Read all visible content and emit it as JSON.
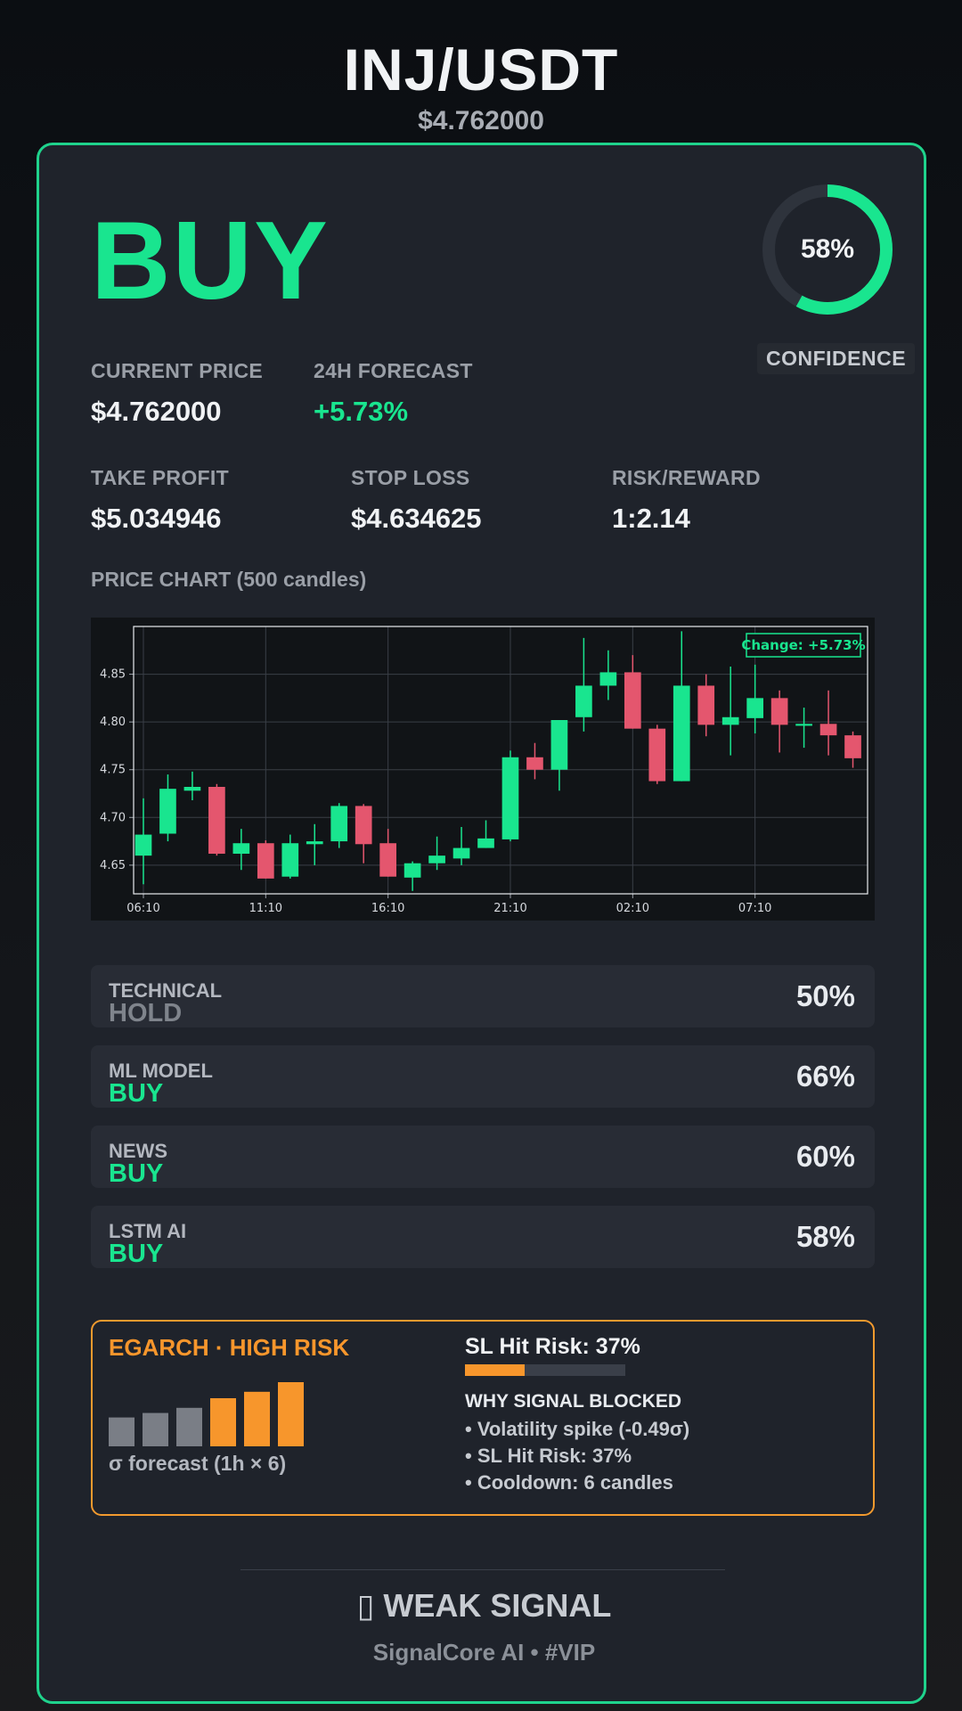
{
  "header": {
    "pair": "INJ/USDT",
    "price": "$4.762000"
  },
  "signal": {
    "action": "BUY",
    "confidence_value": 0.58,
    "confidence_text": "58%",
    "confidence_label": "CONFIDENCE",
    "colors": {
      "buy": "#19e58f",
      "sell": "#e4566e",
      "accent_border": "#1fd38c"
    }
  },
  "stats": {
    "current_price": {
      "label": "CURRENT PRICE",
      "value": "$4.762000"
    },
    "forecast": {
      "label": "24H FORECAST",
      "value": "+5.73%"
    },
    "take_profit": {
      "label": "TAKE PROFIT",
      "value": "$5.034946"
    },
    "stop_loss": {
      "label": "STOP LOSS",
      "value": "$4.634625"
    },
    "risk_reward": {
      "label": "RISK/REWARD",
      "value": "1:2.14"
    }
  },
  "chart_title": "PRICE CHART (500 candles)",
  "chart_data": {
    "type": "candlestick",
    "annotation": "Change: +5.73%",
    "ylim": [
      4.62,
      4.9
    ],
    "yticks": [
      4.65,
      4.7,
      4.75,
      4.8,
      4.85
    ],
    "ytick_labels": [
      "4.65",
      "4.70",
      "4.75",
      "4.80",
      "4.85"
    ],
    "xlim": [
      0,
      30
    ],
    "xticks": [
      0.4,
      5.4,
      10.4,
      15.4,
      20.4,
      25.4
    ],
    "xtick_labels": [
      "06:10",
      "11:10",
      "16:10",
      "21:10",
      "02:10",
      "07:10"
    ],
    "grid": true,
    "candles": [
      {
        "o": 4.66,
        "h": 4.72,
        "l": 4.63,
        "c": 4.682
      },
      {
        "o": 4.683,
        "h": 4.745,
        "l": 4.675,
        "c": 4.73
      },
      {
        "o": 4.728,
        "h": 4.748,
        "l": 4.718,
        "c": 4.732
      },
      {
        "o": 4.732,
        "h": 4.735,
        "l": 4.66,
        "c": 4.662
      },
      {
        "o": 4.662,
        "h": 4.688,
        "l": 4.645,
        "c": 4.673
      },
      {
        "o": 4.673,
        "h": 4.676,
        "l": 4.636,
        "c": 4.636
      },
      {
        "o": 4.638,
        "h": 4.682,
        "l": 4.636,
        "c": 4.673
      },
      {
        "o": 4.672,
        "h": 4.693,
        "l": 4.65,
        "c": 4.675
      },
      {
        "o": 4.675,
        "h": 4.715,
        "l": 4.668,
        "c": 4.712
      },
      {
        "o": 4.712,
        "h": 4.714,
        "l": 4.652,
        "c": 4.672
      },
      {
        "o": 4.673,
        "h": 4.688,
        "l": 4.638,
        "c": 4.638
      },
      {
        "o": 4.637,
        "h": 4.654,
        "l": 4.623,
        "c": 4.652
      },
      {
        "o": 4.652,
        "h": 4.68,
        "l": 4.645,
        "c": 4.66
      },
      {
        "o": 4.657,
        "h": 4.69,
        "l": 4.65,
        "c": 4.668
      },
      {
        "o": 4.668,
        "h": 4.697,
        "l": 4.668,
        "c": 4.678
      },
      {
        "o": 4.677,
        "h": 4.77,
        "l": 4.675,
        "c": 4.763
      },
      {
        "o": 4.763,
        "h": 4.778,
        "l": 4.74,
        "c": 4.75
      },
      {
        "o": 4.75,
        "h": 4.802,
        "l": 4.728,
        "c": 4.802
      },
      {
        "o": 4.805,
        "h": 4.888,
        "l": 4.79,
        "c": 4.838
      },
      {
        "o": 4.838,
        "h": 4.875,
        "l": 4.823,
        "c": 4.852
      },
      {
        "o": 4.852,
        "h": 4.87,
        "l": 4.793,
        "c": 4.793
      },
      {
        "o": 4.793,
        "h": 4.797,
        "l": 4.735,
        "c": 4.738
      },
      {
        "o": 4.738,
        "h": 4.895,
        "l": 4.738,
        "c": 4.838
      },
      {
        "o": 4.838,
        "h": 4.85,
        "l": 4.785,
        "c": 4.797
      },
      {
        "o": 4.797,
        "h": 4.858,
        "l": 4.765,
        "c": 4.805
      },
      {
        "o": 4.804,
        "h": 4.86,
        "l": 4.788,
        "c": 4.825
      },
      {
        "o": 4.825,
        "h": 4.833,
        "l": 4.768,
        "c": 4.797
      },
      {
        "o": 4.796,
        "h": 4.815,
        "l": 4.773,
        "c": 4.798
      },
      {
        "o": 4.798,
        "h": 4.833,
        "l": 4.765,
        "c": 4.786
      },
      {
        "o": 4.786,
        "h": 4.79,
        "l": 4.752,
        "c": 4.762
      }
    ]
  },
  "models": [
    {
      "name": "TECHNICAL",
      "signal": "HOLD",
      "percent": "50%"
    },
    {
      "name": "ML MODEL",
      "signal": "BUY",
      "percent": "66%"
    },
    {
      "name": "NEWS",
      "signal": "BUY",
      "percent": "60%"
    },
    {
      "name": "LSTM AI",
      "signal": "BUY",
      "percent": "58%"
    }
  ],
  "risk": {
    "title": "EGARCH · HIGH RISK",
    "sigma_label": "σ forecast (1h × 6)",
    "sigma_bars": [
      0.45,
      0.52,
      0.6,
      0.75,
      0.85,
      1.0
    ],
    "sigma_bar_colors": [
      "#7a7e86",
      "#7a7e86",
      "#7a7e86",
      "#f7962c",
      "#f7962c",
      "#f7962c"
    ],
    "sl_title": "SL Hit Risk: 37%",
    "sl_value": 0.37,
    "why_title": "WHY SIGNAL BLOCKED",
    "reasons": [
      "• Volatility spike (-0.49σ)",
      "• SL Hit Risk: 37%",
      "• Cooldown: 6 candles"
    ]
  },
  "footer": {
    "signal_strength": "▯ WEAK SIGNAL",
    "brand": "SignalCore AI • #VIP"
  }
}
